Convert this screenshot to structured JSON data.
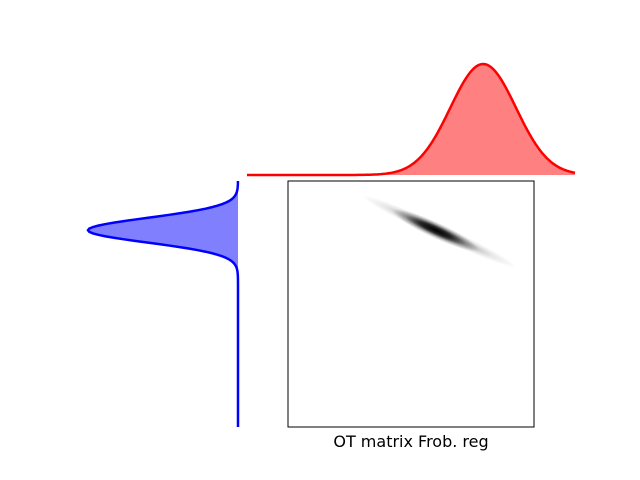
{
  "figure": {
    "caption": "OT matrix Frob. reg"
  },
  "chart_data": [
    {
      "type": "area",
      "role": "target-distribution-top",
      "distribution": "gaussian",
      "mean": 0.72,
      "std": 0.1,
      "x_range": [
        0,
        1
      ],
      "color": "#ff0000",
      "fill": "#ff8080"
    },
    {
      "type": "area",
      "role": "source-distribution-left",
      "distribution": "gaussian",
      "mean": 0.2,
      "std": 0.05,
      "x_range": [
        0,
        1
      ],
      "color": "#0000ff",
      "fill": "#8080ff"
    },
    {
      "type": "heatmap",
      "role": "ot-matrix",
      "colormap": "gray_r",
      "title": "OT matrix Frob. reg",
      "x_range": [
        0,
        1
      ],
      "y_range": [
        0,
        1
      ],
      "band": {
        "start": [
          0.3,
          0.06
        ],
        "peak": [
          0.6,
          0.2
        ],
        "end": [
          0.93,
          0.35
        ]
      }
    }
  ]
}
